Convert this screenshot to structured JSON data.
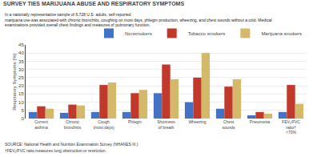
{
  "chart_data": {
    "type": "bar",
    "title": "SURVEY TIES MARIJUANA ABUSE AND RESPIRATORY SYMPTOMS",
    "subtitle": "In a nationally representative sample of 6,728 U.S. adults, self-reported\nmarijuana use was associated with chronic bronchitis, coughing on most days, phlegm production, wheezing, and chest sounds without a cold. Medical\nexaminations provided overall chest findings and measures of pulmonary function.",
    "categories": [
      "Current\nasthma",
      "Chronic\nbronchitis",
      "Cough\n(most days)",
      "Phlegm",
      "Shortness\nof breath",
      "Wheezing",
      "Chest\nsounds",
      "Pneumonia",
      "FEV₁/FVC\nratio†\n<70%"
    ],
    "series": [
      {
        "name": "Nonsmokers",
        "color": "#4472c4",
        "values": [
          4.0,
          3.5,
          4.0,
          4.0,
          15.5,
          10.0,
          6.0,
          2.0,
          4.0
        ]
      },
      {
        "name": "Tobacco smokers",
        "color": "#c0392b",
        "values": [
          7.5,
          8.5,
          20.5,
          15.5,
          33.0,
          25.0,
          19.5,
          4.0,
          20.5
        ]
      },
      {
        "name": "Marijuana smokers",
        "color": "#d4b96a",
        "values": [
          6.0,
          8.0,
          22.0,
          17.5,
          24.0,
          40.0,
          24.0,
          3.0,
          9.0
        ]
      }
    ],
    "ylabel": "Respiratory Symptoms (%)",
    "ylim": [
      0,
      45
    ],
    "yticks": [
      0,
      5,
      10,
      15,
      20,
      25,
      30,
      35,
      40,
      45
    ],
    "grid": true,
    "legend": "upper right",
    "annotations": [
      "SOURCE: National Health and Nutrition Examination Survey (NHANES III )",
      "†FEV₁/FVC ratio measures lung obstruction or restriction."
    ]
  }
}
